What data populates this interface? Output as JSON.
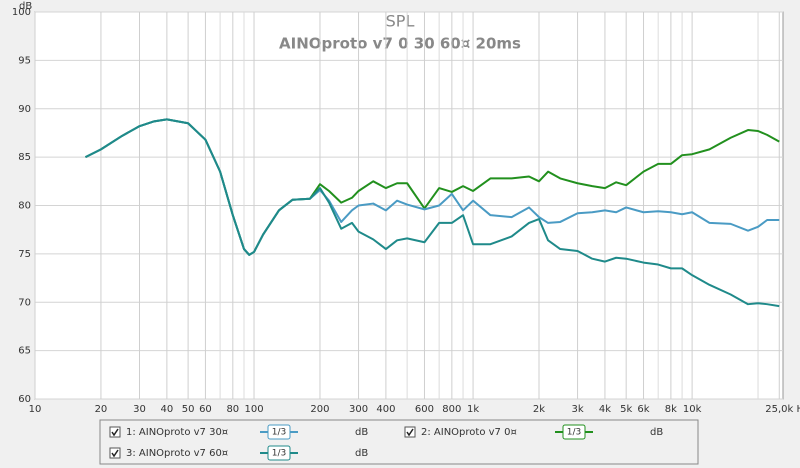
{
  "chart_data": {
    "type": "line",
    "title": "SPL",
    "subtitle": "AINOproto v7 0 30 60¤ 20ms",
    "y_label": "dB",
    "log_x": true,
    "grid": true,
    "xlim": [
      10,
      26000
    ],
    "ylim": [
      60,
      100
    ],
    "yticks": [
      60,
      65,
      70,
      75,
      80,
      85,
      90,
      95,
      100
    ],
    "xticks": [
      10,
      20,
      30,
      40,
      50,
      60,
      80,
      100,
      200,
      300,
      400,
      600,
      800,
      {
        "value": 1000,
        "label": "1k"
      },
      {
        "value": 2000,
        "label": "2k"
      },
      {
        "value": 3000,
        "label": "3k"
      },
      {
        "value": 4000,
        "label": "4k"
      },
      {
        "value": 5000,
        "label": "5k"
      },
      {
        "value": 6000,
        "label": "6k"
      },
      {
        "value": 8000,
        "label": "8k"
      },
      {
        "value": 10000,
        "label": "10k"
      },
      {
        "value": 25000,
        "label": "25,0k Hz"
      }
    ],
    "xminor": [
      70,
      90,
      500,
      700,
      900,
      7000,
      9000,
      20000
    ],
    "x": [
      17,
      20,
      25,
      30,
      35,
      40,
      50,
      60,
      70,
      80,
      90,
      95,
      100,
      110,
      130,
      150,
      180,
      200,
      220,
      250,
      280,
      300,
      350,
      400,
      450,
      500,
      600,
      700,
      800,
      900,
      1000,
      1200,
      1500,
      1800,
      2000,
      2200,
      2500,
      3000,
      3500,
      4000,
      4500,
      5000,
      6000,
      7000,
      8000,
      9000,
      10000,
      12000,
      15000,
      18000,
      20000,
      22000,
      25000
    ],
    "series": [
      {
        "name": "1: AINOproto v7 30¤",
        "color": "#4a9bc4",
        "values": [
          85,
          85.8,
          87.2,
          88.2,
          88.7,
          88.9,
          88.5,
          86.8,
          83.5,
          79,
          75.5,
          74.9,
          75.2,
          77,
          79.5,
          80.6,
          80.7,
          81.6,
          80.5,
          78.3,
          79.5,
          80,
          80.2,
          79.5,
          80.5,
          80.1,
          79.6,
          80.0,
          81.2,
          79.5,
          80.5,
          79,
          78.8,
          79.8,
          78.8,
          78.2,
          78.3,
          79.2,
          79.3,
          79.5,
          79.3,
          79.8,
          79.3,
          79.4,
          79.3,
          79.1,
          79.3,
          78.2,
          78.1,
          77.4,
          77.8,
          78.5,
          78.5
        ]
      },
      {
        "name": "2: AINOproto v7 0¤",
        "color": "#22901e",
        "values": [
          85,
          85.8,
          87.2,
          88.2,
          88.7,
          88.9,
          88.5,
          86.8,
          83.5,
          79,
          75.5,
          74.9,
          75.2,
          77,
          79.5,
          80.6,
          80.7,
          82.2,
          81.5,
          80.3,
          80.8,
          81.5,
          82.5,
          81.8,
          82.3,
          82.3,
          79.7,
          81.8,
          81.4,
          82.0,
          81.5,
          82.8,
          82.8,
          83.0,
          82.5,
          83.5,
          82.8,
          82.3,
          82,
          81.8,
          82.4,
          82.1,
          83.5,
          84.3,
          84.3,
          85.2,
          85.3,
          85.8,
          87,
          87.8,
          87.7,
          87.3,
          86.6
        ]
      },
      {
        "name": "3: AINOproto v7 60¤",
        "color": "#1f8a8a",
        "values": [
          85,
          85.8,
          87.2,
          88.2,
          88.7,
          88.9,
          88.5,
          86.8,
          83.5,
          79,
          75.5,
          74.9,
          75.2,
          77,
          79.5,
          80.6,
          80.7,
          81.8,
          80.3,
          77.6,
          78.2,
          77.3,
          76.5,
          75.5,
          76.4,
          76.6,
          76.2,
          78.2,
          78.2,
          79.0,
          76.0,
          76.0,
          76.8,
          78.2,
          78.6,
          76.4,
          75.5,
          75.3,
          74.5,
          74.2,
          74.6,
          74.5,
          74.1,
          73.9,
          73.5,
          73.5,
          72.8,
          71.8,
          70.8,
          69.8,
          69.9,
          69.8,
          69.6
        ]
      }
    ],
    "legend": {
      "smoothing": "1/3",
      "unit": "dB"
    }
  }
}
